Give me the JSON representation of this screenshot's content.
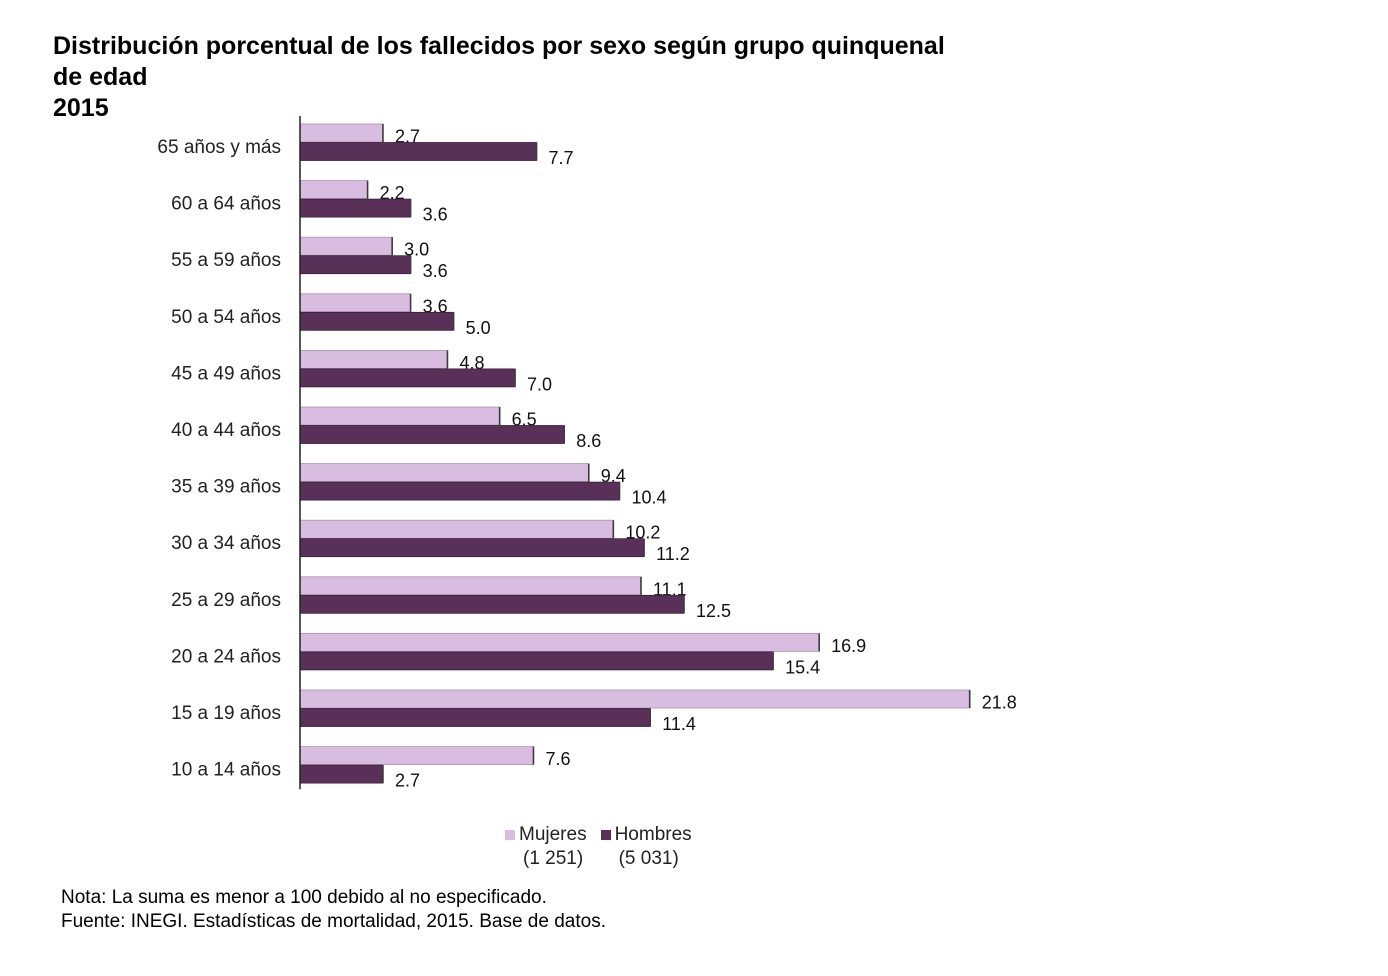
{
  "header": {
    "title_line1": "Distribución porcentual de los fallecidos por sexo según grupo quinquenal",
    "title_line2": "de edad",
    "year": "2015"
  },
  "chart_data": {
    "type": "bar",
    "orientation": "horizontal",
    "title": "Distribución porcentual de los fallecidos por sexo según grupo quinquenal de edad 2015",
    "xlabel": "",
    "ylabel": "",
    "xlim": [
      0,
      22
    ],
    "grid": false,
    "categories": [
      "65 años y más",
      "60 a 64 años",
      "55 a 59 años",
      "50 a 54 años",
      "45 a 49 años",
      "40 a 44 años",
      "35 a 39 años",
      "30 a 34 años",
      "25 a 29 años",
      "20 a 24 años",
      "15 a 19 años",
      "10 a 14 años"
    ],
    "series": [
      {
        "name": "Mujeres",
        "count_label": "(1 251)",
        "color": "#d9bde0",
        "values": [
          2.7,
          2.2,
          3.0,
          3.6,
          4.8,
          6.5,
          9.4,
          10.2,
          11.1,
          16.9,
          21.8,
          7.6
        ]
      },
      {
        "name": "Hombres",
        "count_label": "(5 031)",
        "color": "#583058",
        "values": [
          7.7,
          3.6,
          3.6,
          5.0,
          7.0,
          8.6,
          10.4,
          11.2,
          12.5,
          15.4,
          11.4,
          2.7
        ]
      }
    ],
    "value_labels": {
      "Mujeres": [
        "2.7",
        "2.2",
        "3.0",
        "3.6",
        "4.8",
        "6.5",
        "9.4",
        "10.2",
        "11.1",
        "16.9",
        "21.8",
        "7.6"
      ],
      "Hombres": [
        "7.7",
        "3.6",
        "3.6",
        "5.0",
        "7.0",
        "8.6",
        "10.4",
        "11.2",
        "12.5",
        "15.4",
        "11.4",
        "2.7"
      ]
    },
    "legend_position": "bottom-center"
  },
  "legend": {
    "items": [
      {
        "label": "Mujeres",
        "count": "(1 251)",
        "color": "#d9bde0"
      },
      {
        "label": "Hombres",
        "count": "(5 031)",
        "color": "#583058"
      }
    ]
  },
  "footer": {
    "note": "Nota: La suma es menor a 100 debido al no especificado.",
    "source": "Fuente: INEGI. Estadísticas de mortalidad, 2015. Base de datos."
  }
}
